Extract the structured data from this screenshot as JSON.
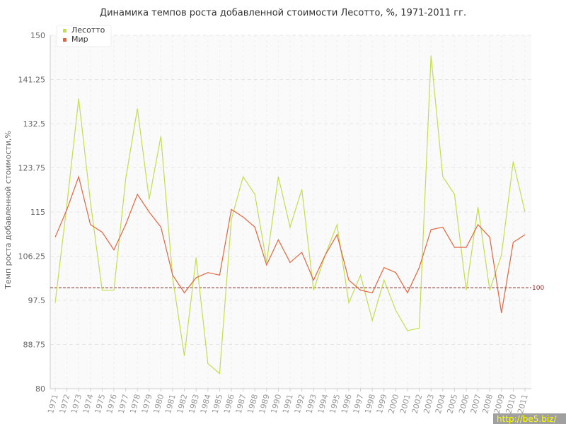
{
  "chart_data": {
    "type": "line",
    "title": "Динамика темпов роста добавленной стоимости Лесотто, %, 1971-2011 гг.",
    "ylabel": "Темп роста добавленной стоимости,%",
    "xlabel": "",
    "ylim": [
      80,
      150
    ],
    "yticks": [
      "80",
      "88.75",
      "97.5",
      "106.25",
      "115",
      "123.75",
      "132.5",
      "141.25",
      "150"
    ],
    "x": [
      "1971",
      "1972",
      "1973",
      "1974",
      "1975",
      "1976",
      "1977",
      "1978",
      "1979",
      "1980",
      "1981",
      "1982",
      "1983",
      "1984",
      "1985",
      "1986",
      "1987",
      "1988",
      "1989",
      "1990",
      "1991",
      "1992",
      "1993",
      "1994",
      "1995",
      "1996",
      "1997",
      "1998",
      "1999",
      "2000",
      "2001",
      "2002",
      "2003",
      "2004",
      "2005",
      "2006",
      "2007",
      "2008",
      "2009",
      "2010",
      "2011"
    ],
    "series": [
      {
        "name": "Лесотто",
        "color": "#c2de50",
        "values": [
          97,
          116.5,
          137.5,
          117,
          99.5,
          99.5,
          121.5,
          135.5,
          117.5,
          130,
          102,
          86.5,
          106,
          85,
          83,
          113.5,
          122,
          118.5,
          105,
          122,
          112,
          119.5,
          99.5,
          106.5,
          112.5,
          97,
          102.5,
          93.5,
          101.5,
          95.5,
          91.5,
          92,
          146,
          122,
          118.5,
          99.5,
          116,
          99.5,
          106.5,
          125,
          115
        ]
      },
      {
        "name": "Мир",
        "color": "#e3643e",
        "values": [
          110,
          115.5,
          122,
          112.5,
          111,
          107.5,
          112.5,
          118.5,
          115,
          112,
          102.5,
          99,
          102,
          103,
          102.5,
          115.5,
          114,
          112,
          104.5,
          109.5,
          105,
          107,
          101.5,
          106.5,
          110.5,
          101.5,
          99.5,
          99,
          104,
          103,
          99,
          104,
          111.5,
          112,
          108,
          108,
          112.5,
          110,
          95,
          109,
          110.5
        ]
      }
    ],
    "reference_line": {
      "value": 100,
      "label": "100",
      "color": "#8b2a2a"
    },
    "grid": true,
    "legend_position": "top-left"
  },
  "watermark": "http://be5.biz/"
}
